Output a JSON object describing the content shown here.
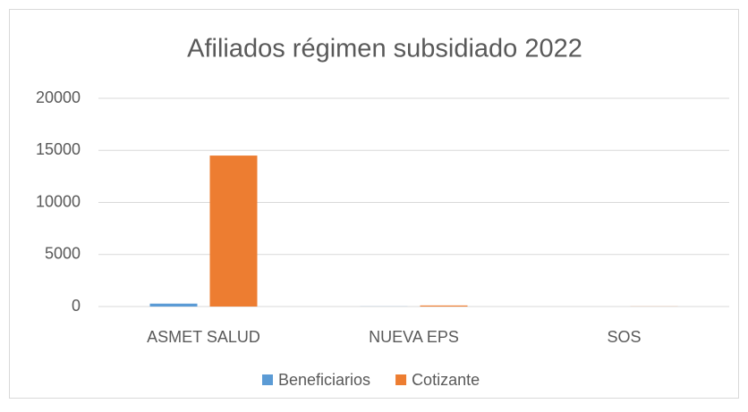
{
  "chart_data": {
    "type": "bar",
    "title": "Afiliados régimen subsidiado 2022",
    "categories": [
      "ASMET SALUD",
      "NUEVA EPS",
      "SOS"
    ],
    "series": [
      {
        "name": "Beneficiarios",
        "color": "#5b9bd5",
        "values": [
          280,
          10,
          0
        ]
      },
      {
        "name": "Cotizante",
        "color": "#ed7d31",
        "values": [
          14500,
          100,
          10
        ]
      }
    ],
    "ylim": [
      0,
      20000
    ],
    "yticks": [
      0,
      5000,
      10000,
      15000,
      20000
    ],
    "grid": true,
    "legend": "bottom"
  }
}
